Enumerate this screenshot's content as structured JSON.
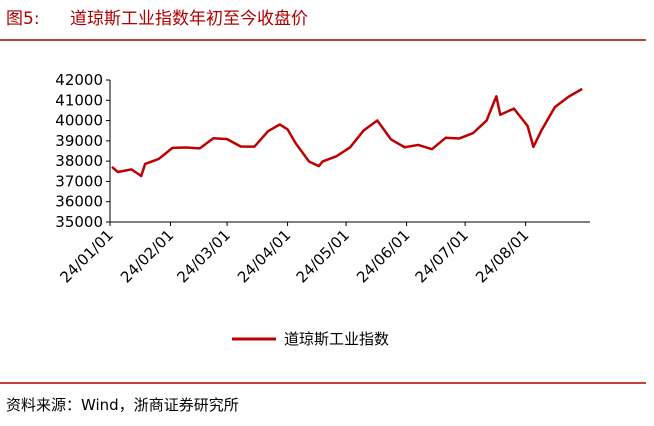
{
  "chart_data": {
    "type": "line",
    "figure_label": "图5:",
    "title": "道琼斯工业指数年初至今收盘价",
    "source": "资料来源：Wind，浙商证券研究所",
    "x": [
      "24/01/02",
      "24/01/05",
      "24/01/12",
      "24/01/17",
      "24/01/19",
      "24/01/26",
      "24/02/02",
      "24/02/09",
      "24/02/16",
      "24/02/23",
      "24/03/01",
      "24/03/08",
      "24/03/15",
      "24/03/22",
      "24/03/28",
      "24/04/01",
      "24/04/05",
      "24/04/12",
      "24/04/17",
      "24/04/19",
      "24/04/26",
      "24/05/03",
      "24/05/10",
      "24/05/17",
      "24/05/24",
      "24/05/31",
      "24/06/07",
      "24/06/14",
      "24/06/21",
      "24/06/28",
      "24/07/05",
      "24/07/12",
      "24/07/17",
      "24/07/19",
      "24/07/26",
      "24/08/02",
      "24/08/05",
      "24/08/09",
      "24/08/16",
      "24/08/23",
      "24/08/30"
    ],
    "series": [
      {
        "name": "道琼斯工业指数",
        "color": "#c00000",
        "values": [
          37715,
          37466,
          37593,
          37267,
          37863,
          38109,
          38654,
          38671,
          38628,
          39131,
          39087,
          38722,
          38715,
          39475,
          39807,
          39567,
          38904,
          37983,
          37753,
          37986,
          38239,
          38676,
          39513,
          40004,
          39070,
          38686,
          38799,
          38589,
          39150,
          39119,
          39376,
          40001,
          41198,
          40288,
          40589,
          39737,
          38703,
          39497,
          40660,
          41175,
          41563
        ]
      }
    ],
    "xlim": [
      "24/01/01",
      "24/09/03"
    ],
    "xticks": [
      "24/01/01",
      "24/02/01",
      "24/03/01",
      "24/04/01",
      "24/05/01",
      "24/06/01",
      "24/07/01",
      "24/08/01"
    ],
    "ylim": [
      35000,
      42000
    ],
    "yticks": [
      35000,
      36000,
      37000,
      38000,
      39000,
      40000,
      41000,
      42000
    ],
    "grid": false,
    "legend": "bottom"
  }
}
